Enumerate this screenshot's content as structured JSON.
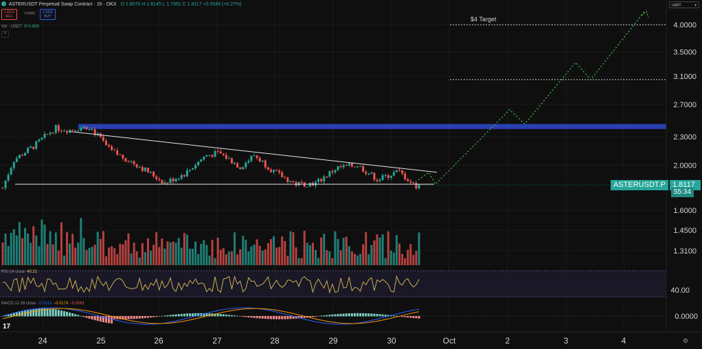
{
  "header": {
    "symbol": "ASTERUSDT Perpetual Swap Contract · 1h · OKX",
    "o": "O 1.8070",
    "h": "H 1.8145",
    "l": "L 1.7991",
    "c": "C 1.8117",
    "change": "+0.0049 (+0.27%)",
    "sell_price": "1.8114",
    "sell_label": "SELL",
    "spread": "0.0001",
    "buy_price": "1.8115",
    "buy_label": "BUY",
    "vol_label": "Vol · USDT",
    "vol_value": "974.65K"
  },
  "unit_selector": "USDT",
  "panes": {
    "rsi_label": "RSI 14 close",
    "rsi_value": "40.21",
    "macd_label": "MACD 12 26 close",
    "macd_v1": "−0.0113",
    "macd_v2": "−0.0174",
    "macd_v3": "−0.0061"
  },
  "annotations": {
    "target_label": "$4 Target",
    "symbol_tag": "ASTERUSDT.P",
    "price_tag": "1.8117",
    "countdown": "55:34"
  },
  "colors": {
    "up": "#26a69a",
    "down": "#ef5350",
    "resistance_zone": "#2a3fb0",
    "projection": "#3fbf3f",
    "rsi_line": "#c8b050",
    "macd_line": "#2962ff",
    "signal_line": "#ff9800"
  },
  "chart_data": {
    "type": "candlestick",
    "timeframe": "1h",
    "y_ticks": [
      "4.0000",
      "3.5000",
      "3.1000",
      "2.7000",
      "2.3000",
      "2.0000",
      "1.6000",
      "1.4500",
      "1.3100"
    ],
    "x_ticks": [
      "24",
      "25",
      "26",
      "27",
      "28",
      "29",
      "30",
      "Oct",
      "2",
      "3",
      "4"
    ],
    "log_scale": true,
    "resistance_zone": [
      2.39,
      2.45
    ],
    "support_line": 1.82,
    "descending_trendline": {
      "from": [
        "24",
        2.36
      ],
      "to": [
        "30",
        1.93
      ]
    },
    "target_lines": [
      4.0,
      3.05
    ],
    "projection_path": [
      {
        "x": "30",
        "y": 1.84
      },
      {
        "x": "30",
        "y": 1.93
      },
      {
        "x": "Oct",
        "y": 1.82
      },
      {
        "x": "2",
        "y": 2.63
      },
      {
        "x": "2",
        "y": 2.45
      },
      {
        "x": "3",
        "y": 3.32
      },
      {
        "x": "3",
        "y": 3.05
      },
      {
        "x": "4",
        "y": 4.3
      }
    ],
    "last_price": 1.8117,
    "rsi": {
      "axis_tick": "40.00",
      "last": 40.21
    },
    "macd": {
      "axis_tick": "0.0000",
      "macd": -0.0113,
      "signal": -0.0174,
      "histogram": -0.0061
    }
  }
}
